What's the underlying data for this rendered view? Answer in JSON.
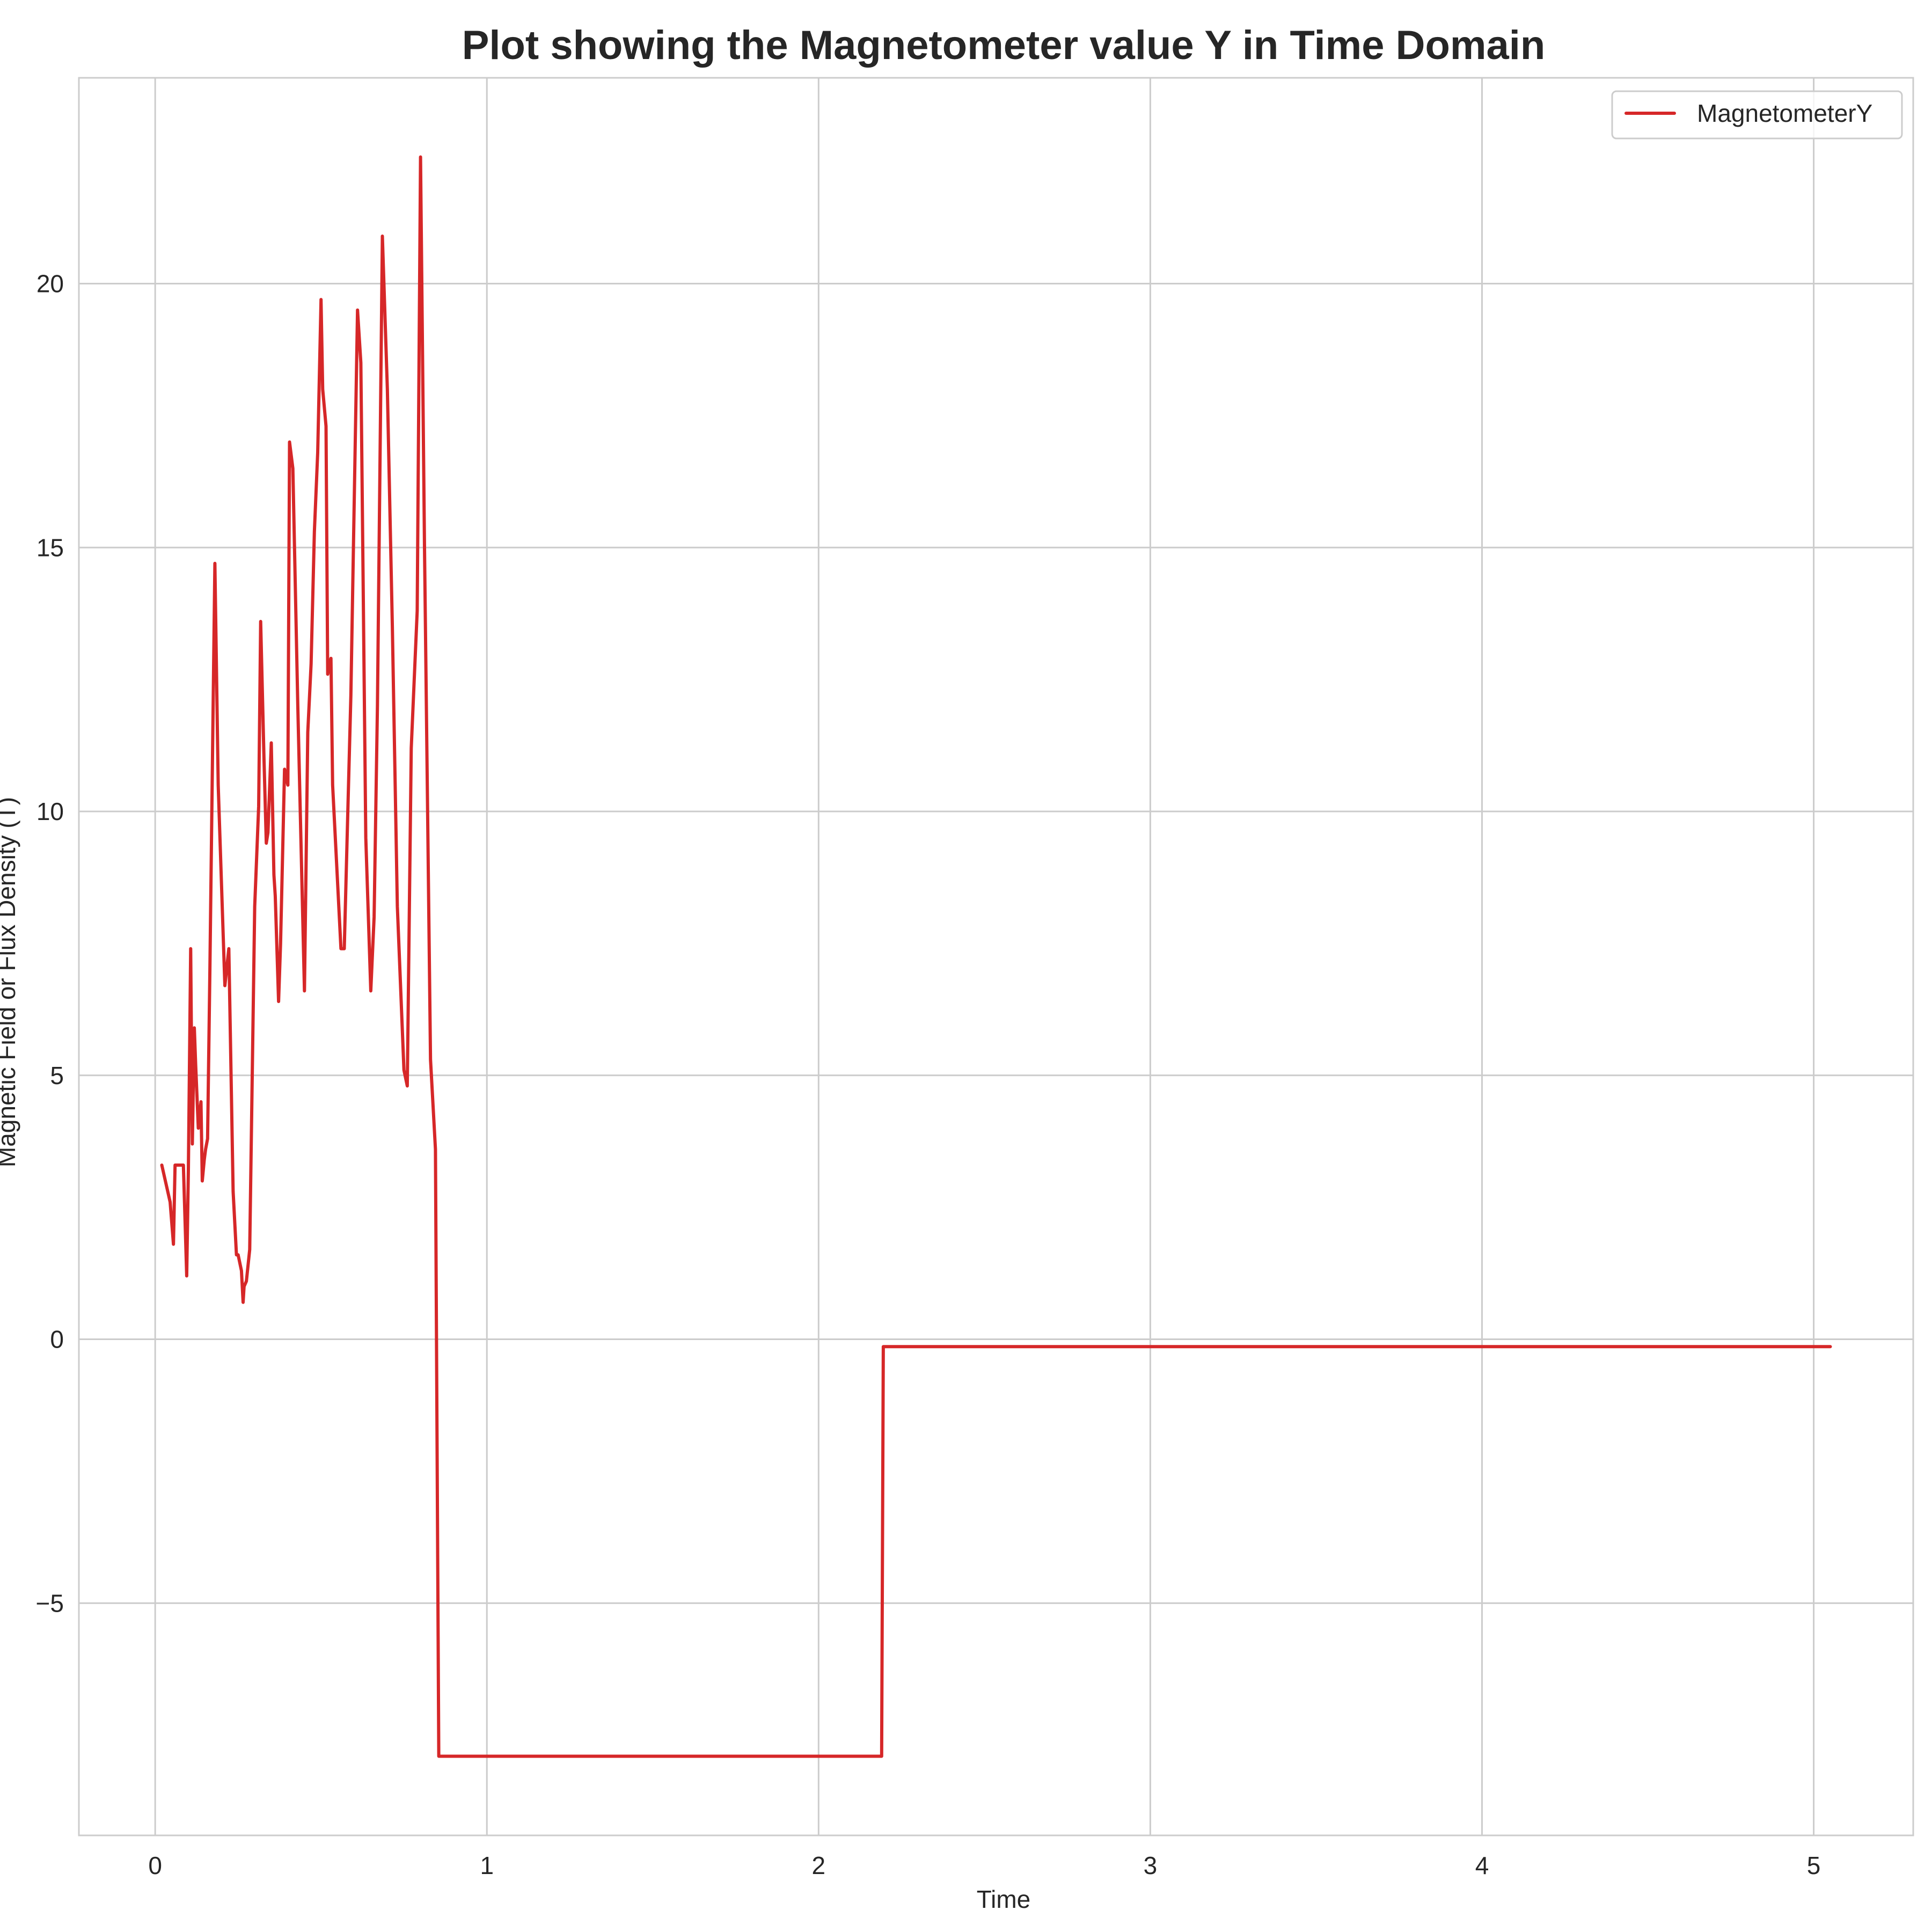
{
  "colors": {
    "line": "#d62728",
    "grid": "#cccccc",
    "frame": "#cccccc",
    "text": "#262626",
    "background": "#ffffff"
  },
  "chart_data": {
    "type": "line",
    "title": "Plot showing the Magnetometer value Y in Time Domain",
    "xlabel": "Time",
    "ylabel": "Magnetic Field or Flux Density (T)",
    "xlim": [
      -0.23,
      5.3
    ],
    "ylim": [
      -9.4,
      23.9
    ],
    "xticks": [
      0,
      1,
      2,
      3,
      4,
      5
    ],
    "yticks": [
      -5,
      0,
      5,
      10,
      15,
      20
    ],
    "xtick_labels": [
      "0",
      "1",
      "2",
      "3",
      "4",
      "5"
    ],
    "ytick_labels": [
      "−5",
      "0",
      "5",
      "10",
      "15",
      "20"
    ],
    "grid": true,
    "legend": {
      "position": "top-right",
      "entries": [
        "MagnetometerY"
      ]
    },
    "series": [
      {
        "name": "MagnetometerY",
        "color": "#d62728",
        "x": [
          0.02,
          0.045,
          0.055,
          0.06,
          0.075,
          0.085,
          0.095,
          0.1,
          0.107,
          0.112,
          0.118,
          0.122,
          0.13,
          0.138,
          0.142,
          0.148,
          0.152,
          0.158,
          0.165,
          0.18,
          0.19,
          0.21,
          0.222,
          0.235,
          0.245,
          0.25,
          0.26,
          0.265,
          0.268,
          0.275,
          0.285,
          0.3,
          0.312,
          0.318,
          0.328,
          0.335,
          0.34,
          0.35,
          0.358,
          0.362,
          0.372,
          0.378,
          0.39,
          0.4,
          0.405,
          0.415,
          0.43,
          0.45,
          0.46,
          0.47,
          0.48,
          0.49,
          0.5,
          0.505,
          0.515,
          0.52,
          0.53,
          0.535,
          0.56,
          0.57,
          0.58,
          0.59,
          0.61,
          0.62,
          0.635,
          0.65,
          0.66,
          0.67,
          0.685,
          0.7,
          0.715,
          0.73,
          0.75,
          0.76,
          0.772,
          0.79,
          0.8,
          0.812,
          0.83,
          0.845,
          0.855,
          0.865,
          2.19,
          2.195,
          5.05
        ],
        "y": [
          3.3,
          2.6,
          1.8,
          3.3,
          3.3,
          3.3,
          1.2,
          3.2,
          7.4,
          3.7,
          5.9,
          5.2,
          4.0,
          4.5,
          3.0,
          3.4,
          3.6,
          3.8,
          7.0,
          14.7,
          10.5,
          6.7,
          7.4,
          2.8,
          1.6,
          1.6,
          1.3,
          0.7,
          1.0,
          1.1,
          1.7,
          8.2,
          10.1,
          13.6,
          11.0,
          9.4,
          9.6,
          11.3,
          8.8,
          8.4,
          6.4,
          7.5,
          10.8,
          10.5,
          17.0,
          16.5,
          12.0,
          6.6,
          11.5,
          12.8,
          15.3,
          16.8,
          19.7,
          18.0,
          17.3,
          12.6,
          12.9,
          10.5,
          7.4,
          7.4,
          9.8,
          12.2,
          19.5,
          18.5,
          9.5,
          6.6,
          8.0,
          12.0,
          20.9,
          18.0,
          13.5,
          8.2,
          5.1,
          4.8,
          11.2,
          13.8,
          22.4,
          15.0,
          5.3,
          3.6,
          -7.9,
          -7.9,
          -7.9,
          -0.14,
          -0.14
        ]
      }
    ]
  }
}
